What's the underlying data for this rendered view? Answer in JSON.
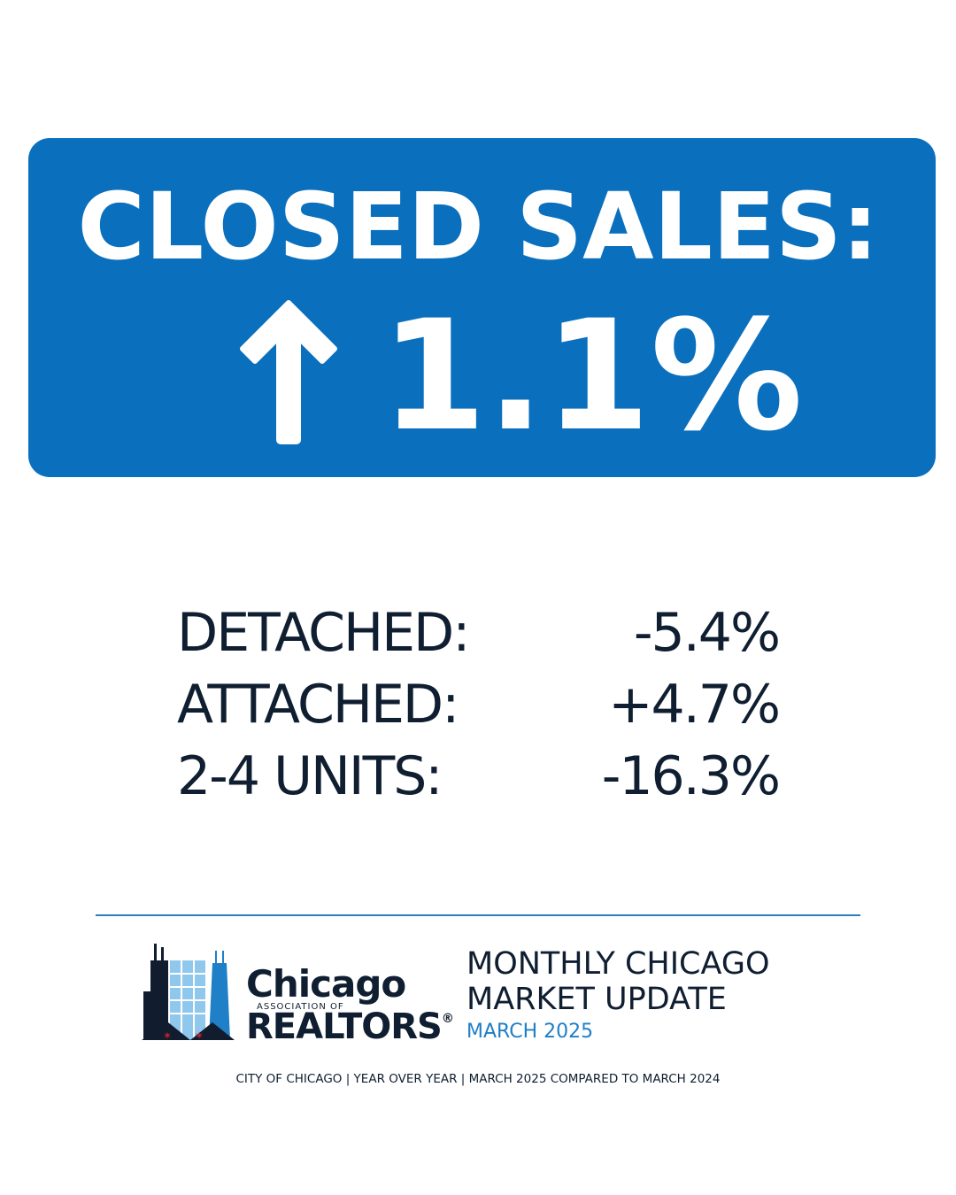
{
  "header": {
    "title": "CLOSED SALES:",
    "change": "1.1%"
  },
  "breakdown": {
    "rows": [
      [
        "DETACHED:",
        "-5.4%"
      ],
      [
        "ATTACHED:",
        "+4.7%"
      ],
      [
        "2-4 UNITS:",
        "-16.3%"
      ]
    ]
  },
  "logo": {
    "name": "Chicago",
    "subtitle": "ASSOCIATION OF",
    "org": "REALTORS",
    "mark": "®"
  },
  "update": {
    "title_lines": [
      "MONTHLY CHICAGO",
      "MARKET UPDATE"
    ],
    "date": "MARCH 2025"
  },
  "footer": "CITY OF CHICAGO | YEAR OVER YEAR | MARCH 2025 COMPARED TO MARCH 2024"
}
